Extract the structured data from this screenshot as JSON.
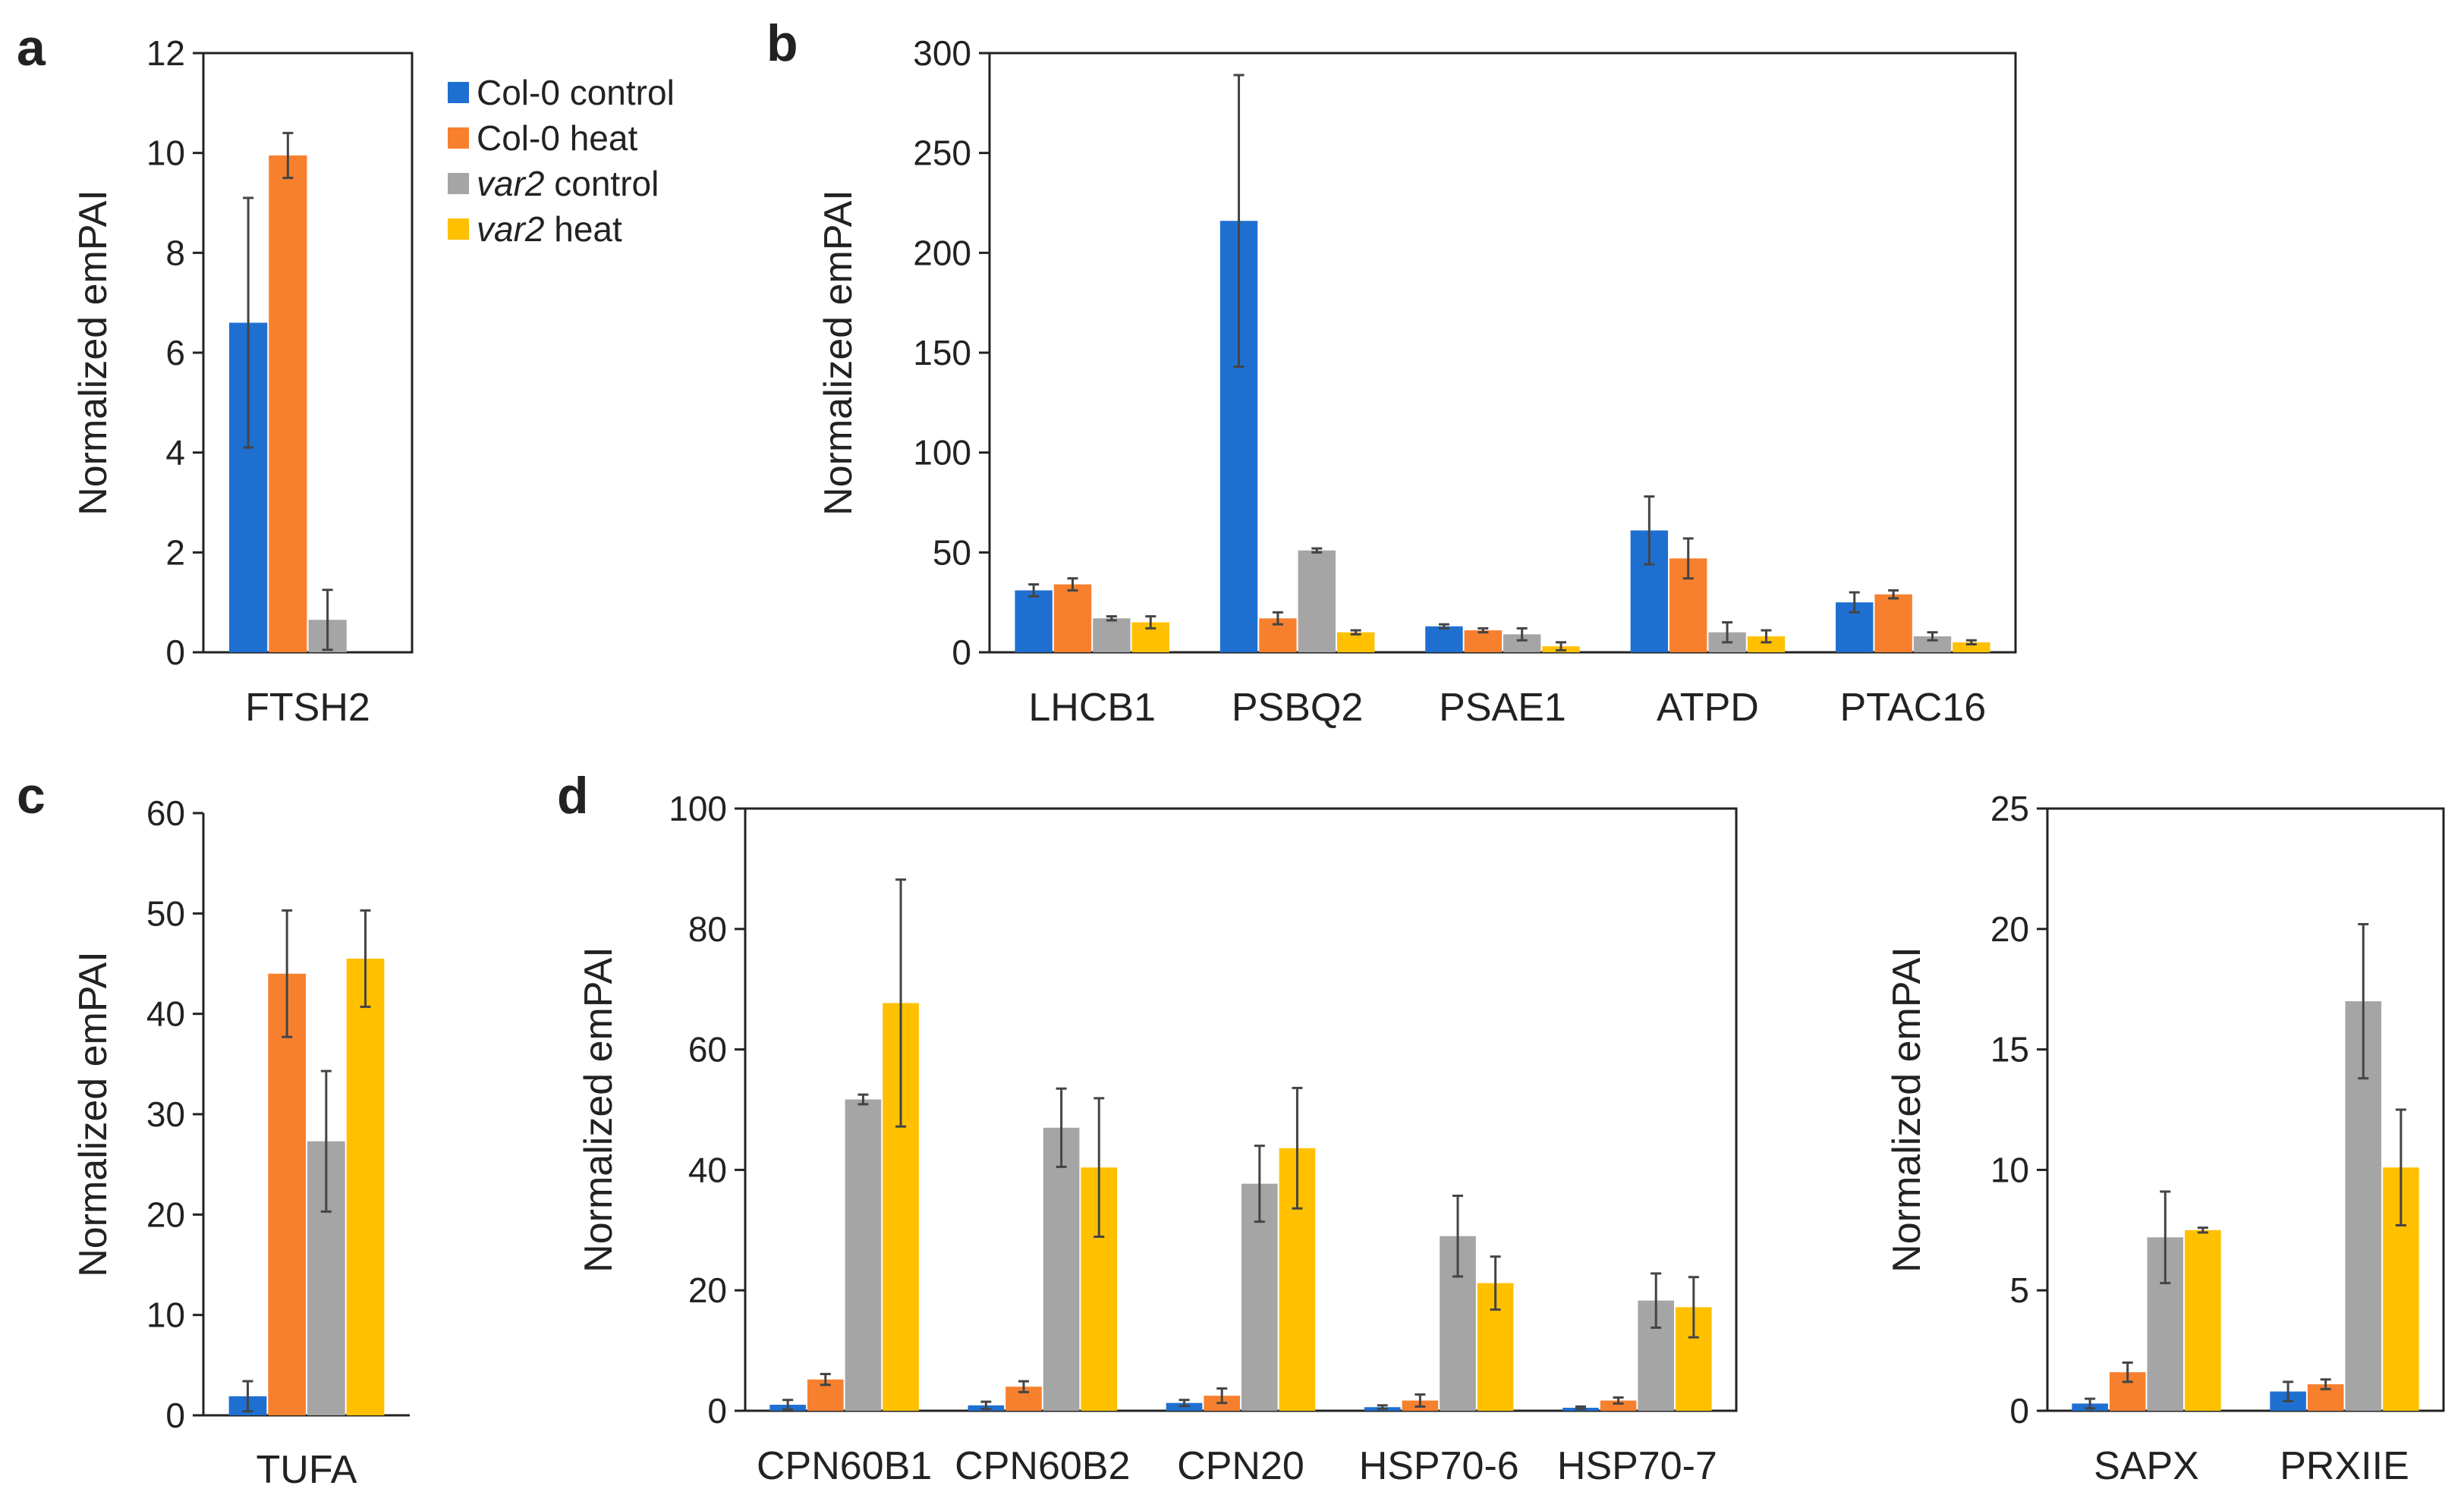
{
  "colors": {
    "Col-0 control": "#1f6fd1",
    "Col-0 heat": "#f7802e",
    "var2 control": "#a5a5a5",
    "var2 heat": "#ffc000"
  },
  "legend": {
    "items": [
      {
        "prefix": "Col-0",
        "suffix": " control",
        "italic_prefix": false,
        "color": "#1f6fd1"
      },
      {
        "prefix": "Col-0",
        "suffix": " heat",
        "italic_prefix": false,
        "color": "#f7802e"
      },
      {
        "prefix": "var2",
        "suffix": " control",
        "italic_prefix": true,
        "color": "#a5a5a5"
      },
      {
        "prefix": "var2",
        "suffix": " heat",
        "italic_prefix": true,
        "color": "#ffc000"
      }
    ]
  },
  "chart_data": [
    {
      "id": "a",
      "panel_label": "a",
      "type": "bar",
      "ylabel": "Normalized emPAI",
      "ylim": [
        0,
        12
      ],
      "yticks": [
        0,
        2,
        4,
        6,
        8,
        10,
        12
      ],
      "frame": "full",
      "categories": [
        "FTSH2"
      ],
      "series": [
        {
          "name": "Col-0 control",
          "values": [
            6.6
          ],
          "errors": [
            2.5
          ]
        },
        {
          "name": "Col-0 heat",
          "values": [
            9.95
          ],
          "errors": [
            0.45
          ]
        },
        {
          "name": "var2 control",
          "values": [
            0.65
          ],
          "errors": [
            0.6
          ]
        }
      ]
    },
    {
      "id": "b",
      "panel_label": "b",
      "type": "bar",
      "ylabel": "Normalized emPAI",
      "ylim": [
        0,
        300
      ],
      "yticks": [
        0,
        50,
        100,
        150,
        200,
        250,
        300
      ],
      "frame": "full",
      "categories": [
        "LHCB1",
        "PSBQ2",
        "PSAE1",
        "ATPD",
        "PTAC16"
      ],
      "series": [
        {
          "name": "Col-0 control",
          "values": [
            31,
            216,
            13,
            61,
            25
          ],
          "errors": [
            3,
            73,
            1,
            17,
            5
          ]
        },
        {
          "name": "Col-0 heat",
          "values": [
            34,
            17,
            11,
            47,
            29
          ],
          "errors": [
            3,
            3,
            1,
            10,
            2
          ]
        },
        {
          "name": "var2 control",
          "values": [
            17,
            51,
            9,
            10,
            8
          ],
          "errors": [
            1,
            1,
            3,
            5,
            2
          ]
        },
        {
          "name": "var2 heat",
          "values": [
            15,
            10,
            3,
            8,
            5
          ],
          "errors": [
            3,
            1,
            2,
            3,
            1
          ]
        }
      ]
    },
    {
      "id": "c",
      "panel_label": "c",
      "type": "bar",
      "ylabel": "Normalized emPAI",
      "ylim": [
        0,
        60
      ],
      "yticks": [
        0,
        10,
        20,
        30,
        40,
        50,
        60
      ],
      "frame": "open",
      "categories": [
        "TUFA"
      ],
      "series": [
        {
          "name": "Col-0 control",
          "values": [
            1.9
          ],
          "errors": [
            1.5
          ]
        },
        {
          "name": "Col-0 heat",
          "values": [
            44
          ],
          "errors": [
            6.3
          ]
        },
        {
          "name": "var2 control",
          "values": [
            27.3
          ],
          "errors": [
            7
          ]
        },
        {
          "name": "var2 heat",
          "values": [
            45.5
          ],
          "errors": [
            4.8
          ]
        }
      ]
    },
    {
      "id": "d1",
      "panel_label": "d",
      "type": "bar",
      "ylabel": "Normalized emPAI",
      "ylim": [
        0,
        100
      ],
      "yticks": [
        0,
        20,
        40,
        60,
        80,
        100
      ],
      "frame": "full",
      "categories": [
        "CPN60B1",
        "CPN60B2",
        "CPN20",
        "HSP70-6",
        "HSP70-7"
      ],
      "series": [
        {
          "name": "Col-0 control",
          "values": [
            1,
            0.9,
            1.3,
            0.6,
            0.5
          ],
          "errors": [
            0.8,
            0.6,
            0.5,
            0.3,
            0.2
          ]
        },
        {
          "name": "Col-0 heat",
          "values": [
            5.2,
            4,
            2.5,
            1.7,
            1.7
          ],
          "errors": [
            0.9,
            0.9,
            1.2,
            1,
            0.5
          ]
        },
        {
          "name": "var2 control",
          "values": [
            51.7,
            47,
            37.7,
            29,
            18.3
          ],
          "errors": [
            0.8,
            6.5,
            6.3,
            6.7,
            4.5
          ]
        },
        {
          "name": "var2 heat",
          "values": [
            67.7,
            40.4,
            43.6,
            21.2,
            17.2
          ],
          "errors": [
            20.5,
            11.5,
            10,
            4.4,
            5
          ]
        }
      ]
    },
    {
      "id": "d2",
      "panel_label": "",
      "type": "bar",
      "ylabel": "Normalized emPAI",
      "ylim": [
        0,
        25
      ],
      "yticks": [
        0,
        5,
        10,
        15,
        20,
        25
      ],
      "frame": "full",
      "categories": [
        "SAPX",
        "PRXIIE"
      ],
      "series": [
        {
          "name": "Col-0 control",
          "values": [
            0.3,
            0.8
          ],
          "errors": [
            0.2,
            0.4
          ]
        },
        {
          "name": "Col-0 heat",
          "values": [
            1.6,
            1.1
          ],
          "errors": [
            0.4,
            0.2
          ]
        },
        {
          "name": "var2 control",
          "values": [
            7.2,
            17
          ],
          "errors": [
            1.9,
            3.2
          ]
        },
        {
          "name": "var2 heat",
          "values": [
            7.5,
            10.1
          ],
          "errors": [
            0.1,
            2.4
          ]
        }
      ]
    }
  ]
}
